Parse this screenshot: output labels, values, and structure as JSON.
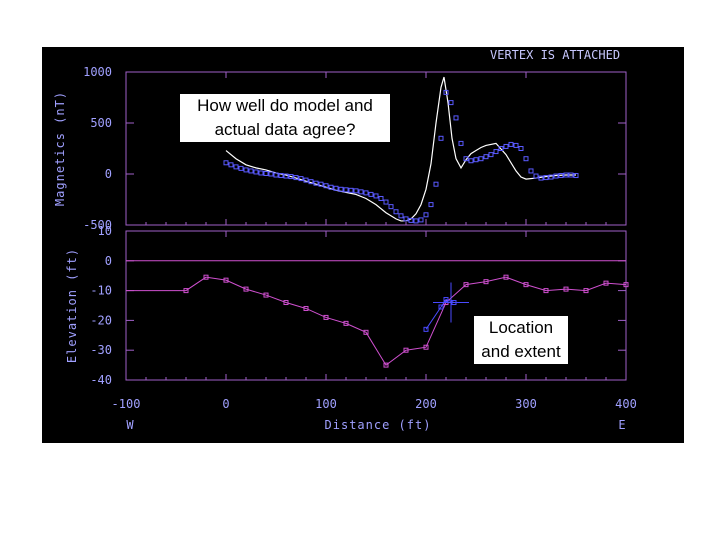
{
  "status": "VERTEX IS ATTACHED",
  "callouts": {
    "agreement": "How well do model and actual data agree?",
    "location": "Location and extent"
  },
  "colors": {
    "background": "#000000",
    "axes": "#a060c8",
    "text": "#a0a0ff",
    "status": "#c8c8ff",
    "model_curve": "#ffffff",
    "observed": "#5a5aff",
    "body": "#d050d0",
    "highlight": "#4a4aff"
  },
  "chart_data": [
    {
      "type": "line",
      "panel": "magnetics",
      "ylabel": "Magnetics (nT)",
      "ylim": [
        -500,
        1000
      ],
      "xlim": [
        -100,
        400
      ],
      "yticks": [
        "1000",
        "500",
        "0",
        "-500"
      ],
      "grid": false,
      "series": [
        {
          "style": "line",
          "x": [
            0,
            10,
            20,
            30,
            40,
            50,
            60,
            70,
            80,
            90,
            100,
            110,
            120,
            130,
            140,
            150,
            160,
            170,
            175,
            180,
            185,
            190,
            195,
            200,
            205,
            210,
            215,
            218,
            222,
            226,
            230,
            235,
            240,
            245,
            250,
            255,
            260,
            270,
            280,
            290,
            295,
            300,
            310,
            320,
            330,
            340,
            350
          ],
          "y": [
            230,
            150,
            90,
            60,
            40,
            10,
            -10,
            -40,
            -70,
            -100,
            -130,
            -160,
            -180,
            -200,
            -240,
            -300,
            -380,
            -440,
            -460,
            -460,
            -440,
            -390,
            -300,
            -150,
            100,
            500,
            850,
            950,
            700,
            350,
            150,
            60,
            140,
            200,
            230,
            260,
            280,
            300,
            190,
            30,
            -30,
            -50,
            -40,
            -25,
            -15,
            -10,
            -10
          ]
        },
        {
          "style": "markers",
          "x": [
            0,
            5,
            10,
            15,
            20,
            25,
            30,
            35,
            40,
            45,
            50,
            55,
            60,
            65,
            70,
            75,
            80,
            85,
            90,
            95,
            100,
            105,
            110,
            115,
            120,
            125,
            130,
            135,
            140,
            145,
            150,
            155,
            160,
            165,
            170,
            175,
            180,
            185,
            190,
            195,
            200,
            205,
            210,
            215,
            220,
            225,
            230,
            235,
            240,
            245,
            250,
            255,
            260,
            265,
            270,
            275,
            280,
            285,
            290,
            295,
            300,
            305,
            310,
            315,
            320,
            325,
            330,
            335,
            340,
            345,
            350
          ],
          "y": [
            110,
            90,
            70,
            55,
            40,
            30,
            20,
            10,
            5,
            0,
            -10,
            -15,
            -20,
            -25,
            -35,
            -45,
            -60,
            -75,
            -90,
            -100,
            -115,
            -130,
            -140,
            -150,
            -155,
            -160,
            -165,
            -175,
            -185,
            -200,
            -215,
            -240,
            -275,
            -320,
            -370,
            -410,
            -440,
            -455,
            -460,
            -450,
            -400,
            -300,
            -100,
            350,
            800,
            700,
            550,
            300,
            150,
            130,
            140,
            150,
            170,
            190,
            220,
            250,
            270,
            290,
            280,
            250,
            150,
            30,
            -20,
            -40,
            -35,
            -30,
            -20,
            -15,
            -10,
            -10,
            -15
          ]
        }
      ]
    },
    {
      "type": "line",
      "panel": "elevation",
      "ylabel": "Elevation (ft)",
      "xlabel": "Distance (ft)",
      "ylim": [
        -40,
        10
      ],
      "xlim": [
        -100,
        400
      ],
      "yticks": [
        "10",
        "0",
        "-10",
        "-20",
        "-30",
        "-40"
      ],
      "xticks": [
        "-100",
        "0",
        "100",
        "200",
        "300",
        "400"
      ],
      "x_end_labels": {
        "left": "W",
        "right": "E"
      },
      "grid": false,
      "series": [
        {
          "style": "line-markers",
          "x": [
            -100,
            -40,
            -20,
            0,
            20,
            40,
            60,
            80,
            100,
            120,
            140,
            160,
            180,
            200,
            220,
            240,
            260,
            280,
            300,
            320,
            340,
            360,
            380,
            400
          ],
          "y": [
            -10,
            -10,
            -5.5,
            -6.5,
            -9.5,
            -11.5,
            -14,
            -16,
            -19,
            -21,
            -24,
            -35,
            -30,
            -29,
            -14,
            -8,
            -7,
            -5.5,
            -8,
            -10,
            -9.5,
            -10,
            -7.5,
            -8
          ]
        },
        {
          "style": "line-markers",
          "role": "selected-segment",
          "x": [
            200,
            215,
            220,
            228
          ],
          "y": [
            -23,
            -15.5,
            -13,
            -14
          ]
        }
      ],
      "reference_line": 0,
      "vertex": {
        "x": 225,
        "y": -14
      }
    }
  ]
}
